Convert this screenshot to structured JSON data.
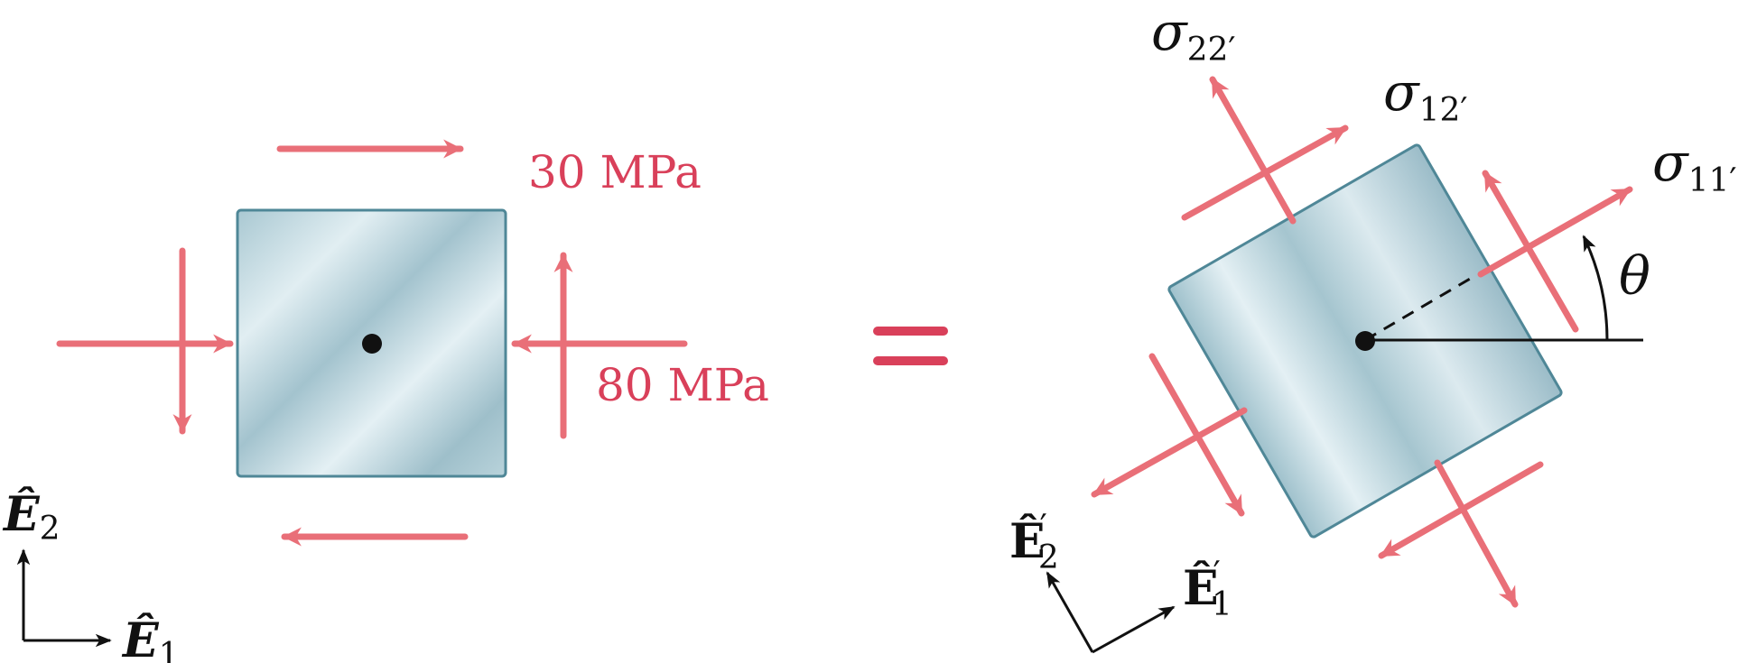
{
  "colors": {
    "arrow": "#e96f78",
    "label": "#d9405a",
    "element_fill_light": "#dbeaef",
    "element_fill_dark": "#9fc1cc",
    "element_stroke": "#4f8797",
    "ink": "#111111"
  },
  "left_element": {
    "shear_label": "30 MPa",
    "normal_label": "80 MPa",
    "basis": {
      "e1": {
        "base": "Ê",
        "sub": "1"
      },
      "e2": {
        "base": "Ê",
        "sub": "2"
      }
    }
  },
  "equals_sign": "=",
  "right_element": {
    "sigma11": {
      "base": "σ",
      "sub": "11′"
    },
    "sigma22": {
      "base": "σ",
      "sub": "22′"
    },
    "sigma12": {
      "base": "σ",
      "sub": "12′"
    },
    "angle": "θ",
    "basis": {
      "e1": {
        "base": "Ê",
        "prime": "′",
        "sub": "1"
      },
      "e2": {
        "base": "Ê",
        "prime": "′",
        "sub": "2"
      }
    }
  }
}
